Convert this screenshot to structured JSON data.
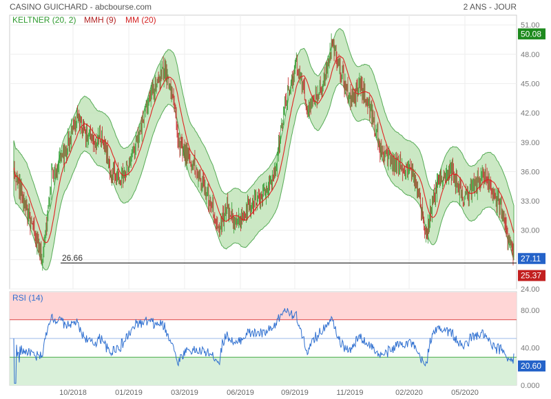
{
  "header": {
    "title": "CASINO GUICHARD - abcbourse.com",
    "period": "2 ANS - JOUR"
  },
  "legend": [
    {
      "label": "KELTNER (20, 2)",
      "color": "#2e9a2e"
    },
    {
      "label": "MMH (9)",
      "color": "#b22222"
    },
    {
      "label": "MM (20)",
      "color": "#d42020"
    }
  ],
  "colors": {
    "up": "#2d9a2d",
    "down": "#c21f1f",
    "band_fill": "#b9e0b0",
    "band_line": "#55aa55",
    "mm20": "#e02020",
    "rsi_line": "#2e6fd0",
    "rsi_top_zone": "#ffd6d6",
    "rsi_bottom_zone": "#d9f0d9"
  },
  "chart_data": [
    {
      "type": "candlestick",
      "title": "CASINO GUICHARD - abcbourse.com",
      "period": "2 ANS - JOUR",
      "ylim": [
        24,
        52
      ],
      "yticks": [
        24,
        27,
        30,
        33,
        36,
        39,
        42,
        45,
        48,
        51
      ],
      "ytick_labels": [
        "24.00",
        "27.00",
        "30.00",
        "33.00",
        "36.00",
        "39.00",
        "42.00",
        "45.00",
        "48.00",
        "51.00"
      ],
      "xtick_labels": [
        "10/2018",
        "01/2019",
        "03/2019",
        "06/2019",
        "09/2019",
        "11/2019",
        "02/2020",
        "05/2020"
      ],
      "price_path": [
        {
          "t": 0,
          "close": 36.0
        },
        {
          "t": 15,
          "close": 33.0
        },
        {
          "t": 30,
          "close": 29.5
        },
        {
          "t": 42,
          "close": 27.0
        },
        {
          "t": 55,
          "close": 35.5
        },
        {
          "t": 75,
          "close": 38.0
        },
        {
          "t": 92,
          "close": 41.5
        },
        {
          "t": 115,
          "close": 39.0
        },
        {
          "t": 130,
          "close": 39.5
        },
        {
          "t": 140,
          "close": 36.0
        },
        {
          "t": 160,
          "close": 35.5
        },
        {
          "t": 175,
          "close": 38.0
        },
        {
          "t": 195,
          "close": 43.0
        },
        {
          "t": 220,
          "close": 46.5
        },
        {
          "t": 232,
          "close": 44.0
        },
        {
          "t": 240,
          "close": 39.0
        },
        {
          "t": 260,
          "close": 37.0
        },
        {
          "t": 280,
          "close": 34.0
        },
        {
          "t": 300,
          "close": 30.0
        },
        {
          "t": 310,
          "close": 32.5
        },
        {
          "t": 325,
          "close": 30.5
        },
        {
          "t": 345,
          "close": 32.5
        },
        {
          "t": 365,
          "close": 33.5
        },
        {
          "t": 380,
          "close": 35.5
        },
        {
          "t": 395,
          "close": 43.0
        },
        {
          "t": 412,
          "close": 47.0
        },
        {
          "t": 430,
          "close": 42.0
        },
        {
          "t": 450,
          "close": 45.0
        },
        {
          "t": 465,
          "close": 49.5
        },
        {
          "t": 478,
          "close": 46.0
        },
        {
          "t": 492,
          "close": 43.0
        },
        {
          "t": 505,
          "close": 45.0
        },
        {
          "t": 520,
          "close": 42.5
        },
        {
          "t": 535,
          "close": 38.0
        },
        {
          "t": 550,
          "close": 37.0
        },
        {
          "t": 565,
          "close": 36.5
        },
        {
          "t": 580,
          "close": 36.0
        },
        {
          "t": 592,
          "close": 33.0
        },
        {
          "t": 600,
          "close": 29.5
        },
        {
          "t": 608,
          "close": 32.0
        },
        {
          "t": 620,
          "close": 35.5
        },
        {
          "t": 640,
          "close": 36.0
        },
        {
          "t": 655,
          "close": 33.0
        },
        {
          "t": 670,
          "close": 34.5
        },
        {
          "t": 685,
          "close": 35.5
        },
        {
          "t": 700,
          "close": 33.5
        },
        {
          "t": 712,
          "close": 32.0
        },
        {
          "t": 720,
          "close": 29.5
        },
        {
          "t": 729,
          "close": 27.3
        }
      ],
      "support_line": {
        "value": 26.66,
        "label": "26.66"
      },
      "price_labels": [
        {
          "value": 50.08,
          "label": "50.08",
          "color": "#1e8a1e"
        },
        {
          "value": 27.11,
          "label": "27.11",
          "color": "#2563c9"
        },
        {
          "value": 25.37,
          "label": "25.37",
          "color": "#c21f1f"
        }
      ],
      "legend": [
        "KELTNER (20, 2)",
        "MMH (9)",
        "MM (20)"
      ]
    },
    {
      "type": "line",
      "title": "RSI (14)",
      "ylim": [
        0,
        100
      ],
      "yticks": [
        0,
        40,
        80
      ],
      "ytick_labels": [
        "0.000",
        "40.00",
        "80.00"
      ],
      "thresholds": [
        30,
        50,
        70
      ],
      "last_value": 20.6,
      "last_label": "20.60"
    }
  ]
}
